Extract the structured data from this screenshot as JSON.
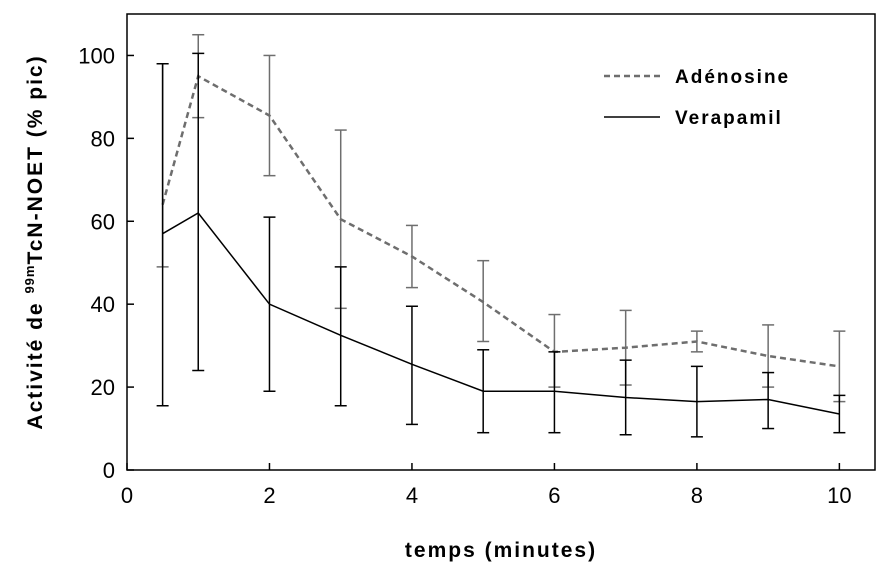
{
  "chart_data": {
    "type": "line",
    "xlabel": "temps (minutes)",
    "ylabel": {
      "prefix": "Activité de ",
      "superscript": "99m",
      "suffix": "TcN-NOET (% pic)"
    },
    "xlim": [
      0,
      10.5
    ],
    "ylim": [
      0,
      110
    ],
    "x_ticks": [
      0,
      2,
      4,
      6,
      8,
      10
    ],
    "y_ticks": [
      0,
      20,
      40,
      60,
      80,
      100
    ],
    "grid": false,
    "legend_position": "top-right",
    "series": [
      {
        "name": "Adénosine",
        "color": "#6e6e6e",
        "line_style": "dashed",
        "x": [
          0.5,
          1,
          2,
          3,
          4,
          5,
          6,
          7,
          8,
          9,
          10
        ],
        "y": [
          64,
          95,
          85.5,
          60.5,
          51.5,
          40.5,
          28.5,
          29.5,
          31,
          27.5,
          25
        ],
        "error_low": [
          49,
          85,
          71,
          39,
          44,
          31,
          20,
          20.5,
          28.5,
          20,
          16.5
        ],
        "error_high": [
          98,
          105,
          100,
          82,
          59,
          50.5,
          37.5,
          38.5,
          33.5,
          35,
          33.5
        ]
      },
      {
        "name": "Verapamil",
        "color": "#000000",
        "line_style": "solid",
        "x": [
          0.5,
          1,
          2,
          3,
          4,
          5,
          6,
          7,
          8,
          9,
          10
        ],
        "y": [
          57,
          62,
          40,
          32.5,
          25.5,
          19,
          19,
          17.5,
          16.5,
          17,
          13.5
        ],
        "error_low": [
          15.5,
          24,
          19,
          15.5,
          11,
          9,
          9,
          8.5,
          8,
          10,
          9
        ],
        "error_high": [
          98,
          100.5,
          61,
          49,
          39.5,
          29,
          28.5,
          26.5,
          25,
          23.5,
          18
        ]
      }
    ]
  }
}
